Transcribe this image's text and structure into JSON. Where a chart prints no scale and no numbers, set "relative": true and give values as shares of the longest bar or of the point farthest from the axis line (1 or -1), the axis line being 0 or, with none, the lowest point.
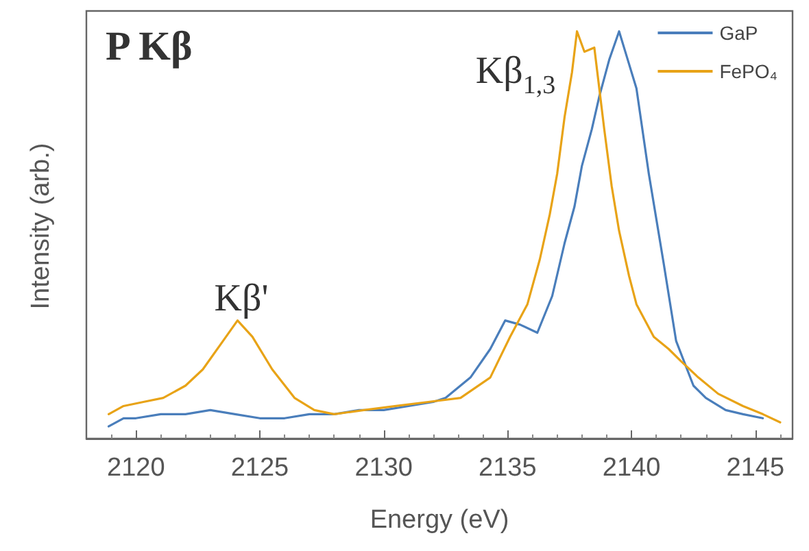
{
  "chart_data": {
    "type": "line",
    "title": "P Kβ",
    "xlabel": "Energy (eV)",
    "ylabel": "Intensity (arb.)",
    "relative": true,
    "xlim": [
      2118,
      2146.5
    ],
    "xticks": [
      2120,
      2125,
      2130,
      2135,
      2140,
      2145
    ],
    "tick_labels": "x",
    "grid": false,
    "legend": "top right",
    "marker": "none",
    "line_style": "solid",
    "annotations": [
      "Kβ'",
      "Kβ$_{1,3}$"
    ],
    "series": [
      {
        "name": "GaP",
        "color": "#4a7ebb",
        "x": [
          2118.9,
          2119.5,
          2120,
          2121,
          2122,
          2123,
          2124,
          2125,
          2126,
          2127,
          2128,
          2129,
          2130,
          2131,
          2132,
          2132.5,
          2133.5,
          2134.3,
          2134.9,
          2135.5,
          2136.2,
          2136.8,
          2137.3,
          2137.7,
          2138,
          2138.4,
          2138.7,
          2139.1,
          2139.5,
          2139.8,
          2140.2,
          2140.7,
          2141.3,
          2141.8,
          2142.5,
          2143,
          2143.8,
          2144.5,
          2145.3
        ],
        "values": [
          0.03,
          0.05,
          0.05,
          0.06,
          0.06,
          0.07,
          0.06,
          0.05,
          0.05,
          0.06,
          0.06,
          0.07,
          0.07,
          0.08,
          0.09,
          0.1,
          0.15,
          0.22,
          0.29,
          0.28,
          0.26,
          0.35,
          0.48,
          0.57,
          0.67,
          0.76,
          0.84,
          0.93,
          1.0,
          0.94,
          0.86,
          0.65,
          0.43,
          0.24,
          0.13,
          0.1,
          0.07,
          0.06,
          0.05
        ]
      },
      {
        "name": "FePO₄",
        "color": "#e8a317",
        "x": [
          2118.9,
          2119.5,
          2120.3,
          2121.1,
          2122,
          2122.7,
          2123.4,
          2124.1,
          2124.7,
          2125.5,
          2126.4,
          2127.2,
          2128,
          2129.2,
          2130.5,
          2131.8,
          2133.1,
          2134.3,
          2135.1,
          2135.8,
          2136.3,
          2136.7,
          2137,
          2137.3,
          2137.6,
          2137.8,
          2138.1,
          2138.5,
          2138.9,
          2139.2,
          2139.5,
          2139.9,
          2140.2,
          2140.9,
          2141.5,
          2142,
          2142.7,
          2143.5,
          2144.5,
          2145.3,
          2146
        ],
        "values": [
          0.06,
          0.08,
          0.09,
          0.1,
          0.13,
          0.17,
          0.23,
          0.29,
          0.25,
          0.17,
          0.1,
          0.07,
          0.06,
          0.07,
          0.08,
          0.09,
          0.1,
          0.15,
          0.25,
          0.33,
          0.44,
          0.55,
          0.65,
          0.79,
          0.9,
          1.0,
          0.95,
          0.96,
          0.76,
          0.62,
          0.51,
          0.4,
          0.33,
          0.25,
          0.22,
          0.19,
          0.15,
          0.11,
          0.08,
          0.06,
          0.04
        ]
      }
    ]
  }
}
